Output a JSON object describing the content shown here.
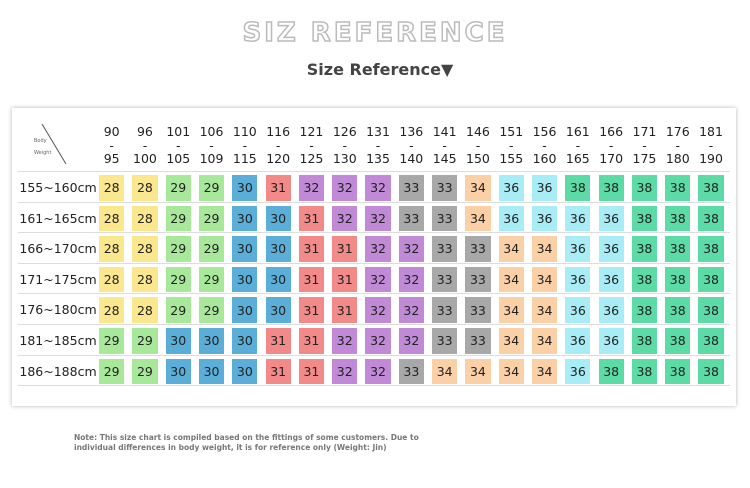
{
  "header": {
    "title": "SIZ REFERENCE",
    "subtitle": "Size Reference▼"
  },
  "table": {
    "corner": [
      "Body",
      "Weight"
    ],
    "range_separator": "-",
    "columns": [
      [
        "90",
        "95"
      ],
      [
        "96",
        "100"
      ],
      [
        "101",
        "105"
      ],
      [
        "106",
        "109"
      ],
      [
        "110",
        "115"
      ],
      [
        "116",
        "120"
      ],
      [
        "121",
        "125"
      ],
      [
        "126",
        "130"
      ],
      [
        "131",
        "135"
      ],
      [
        "136",
        "140"
      ],
      [
        "141",
        "145"
      ],
      [
        "146",
        "150"
      ],
      [
        "151",
        "155"
      ],
      [
        "156",
        "160"
      ],
      [
        "161",
        "165"
      ],
      [
        "166",
        "170"
      ],
      [
        "171",
        "175"
      ],
      [
        "176",
        "180"
      ],
      [
        "181",
        "190"
      ]
    ],
    "rows": [
      {
        "label": "155~160cm",
        "values": [
          28,
          28,
          29,
          29,
          30,
          31,
          32,
          32,
          32,
          33,
          33,
          34,
          36,
          36,
          38,
          38,
          38,
          38,
          38
        ]
      },
      {
        "label": "161~165cm",
        "values": [
          28,
          28,
          29,
          29,
          30,
          30,
          31,
          32,
          32,
          33,
          33,
          34,
          36,
          36,
          36,
          36,
          38,
          38,
          38
        ]
      },
      {
        "label": "166~170cm",
        "values": [
          28,
          28,
          29,
          29,
          30,
          30,
          31,
          31,
          32,
          32,
          33,
          33,
          34,
          34,
          36,
          36,
          38,
          38,
          38
        ]
      },
      {
        "label": "171~175cm",
        "values": [
          28,
          28,
          29,
          29,
          30,
          30,
          31,
          31,
          32,
          32,
          33,
          33,
          34,
          34,
          36,
          36,
          38,
          38,
          38
        ]
      },
      {
        "label": "176~180cm",
        "values": [
          28,
          28,
          29,
          29,
          30,
          30,
          31,
          31,
          32,
          32,
          33,
          33,
          34,
          34,
          36,
          36,
          38,
          38,
          38
        ]
      },
      {
        "label": "181~185cm",
        "values": [
          29,
          29,
          30,
          30,
          30,
          31,
          31,
          32,
          32,
          32,
          33,
          33,
          34,
          34,
          36,
          36,
          38,
          38,
          38
        ]
      },
      {
        "label": "186~188cm",
        "values": [
          29,
          29,
          30,
          30,
          30,
          31,
          31,
          32,
          32,
          33,
          34,
          34,
          34,
          34,
          36,
          38,
          38,
          38,
          38
        ]
      }
    ],
    "size_colors": {
      "28": "#fbe88e",
      "29": "#a8e89a",
      "30": "#5aaed8",
      "31": "#f28a8a",
      "32": "#c08ad6",
      "33": "#a8a8a8",
      "34": "#fcd0a6",
      "36": "#a8ecf6",
      "38": "#5ddba6"
    }
  },
  "note": [
    "Note: This size chart is compiled based on the fittings of some customers. Due to",
    "individual differences in body weight, it is for reference only (Weight: Jin)"
  ]
}
